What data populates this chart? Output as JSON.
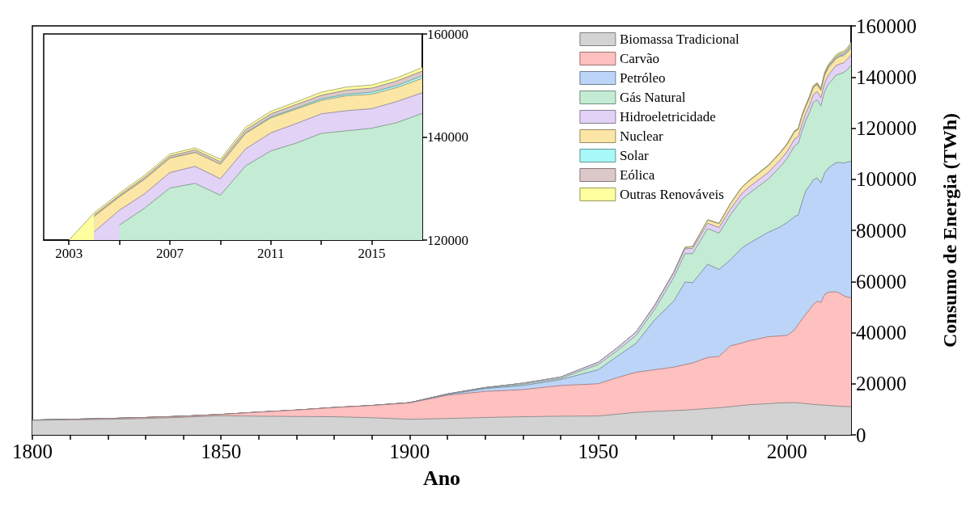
{
  "chart_data": [
    {
      "type": "area",
      "stacked": true,
      "xlabel": "Ano",
      "ylabel": "Consumo de Energia (TWh)",
      "legend": "top right",
      "marker": "none",
      "x": [
        1800,
        1810,
        1820,
        1830,
        1840,
        1850,
        1860,
        1870,
        1880,
        1890,
        1900,
        1910,
        1920,
        1930,
        1940,
        1950,
        1955,
        1960,
        1965,
        1970,
        1973,
        1975,
        1979,
        1982,
        1985,
        1988,
        1990,
        1995,
        1998,
        2000,
        2002,
        2003,
        2004,
        2005,
        2006,
        2007,
        2008,
        2009,
        2010,
        2011,
        2012,
        2013,
        2014,
        2015,
        2016,
        2017
      ],
      "xlim": [
        1800,
        2017
      ],
      "xticks": [
        1800,
        {
          "value": 1810,
          "label": null
        },
        {
          "value": 1820,
          "label": null
        },
        {
          "value": 1830,
          "label": null
        },
        {
          "value": 1840,
          "label": null
        },
        1850,
        {
          "value": 1860,
          "label": null
        },
        {
          "value": 1870,
          "label": null
        },
        {
          "value": 1880,
          "label": null
        },
        {
          "value": 1890,
          "label": null
        },
        1900,
        {
          "value": 1910,
          "label": null
        },
        {
          "value": 1920,
          "label": null
        },
        {
          "value": 1930,
          "label": null
        },
        {
          "value": 1940,
          "label": null
        },
        1950,
        {
          "value": 1960,
          "label": null
        },
        {
          "value": 1970,
          "label": null
        },
        {
          "value": 1980,
          "label": null
        },
        {
          "value": 1990,
          "label": null
        },
        2000,
        {
          "value": 2010,
          "label": null
        }
      ],
      "ylim": [
        0,
        160000
      ],
      "yticks": [
        0,
        20000,
        40000,
        60000,
        80000,
        100000,
        120000,
        140000,
        160000
      ],
      "series": [
        {
          "name": "Biomassa Tradicional",
          "color": "#d3d3d3",
          "values": [
            5700,
            5900,
            6100,
            6400,
            6900,
            7500,
            7300,
            7200,
            7100,
            6700,
            6100,
            6400,
            6800,
            7100,
            7300,
            7400,
            8100,
            8800,
            9200,
            9500,
            9700,
            9900,
            10300,
            10600,
            11000,
            11500,
            11800,
            12200,
            12500,
            12600,
            12600,
            12500,
            12400,
            12200,
            12100,
            11900,
            11800,
            11700,
            11600,
            11500,
            11400,
            11300,
            11200,
            11100,
            11100,
            11000
          ]
        },
        {
          "name": "Carvão",
          "color": "#ffc0c0",
          "values": [
            100,
            200,
            300,
            400,
            400,
            500,
            1600,
            2500,
            3600,
            4800,
            6400,
            9100,
            10200,
            10600,
            12000,
            12600,
            14300,
            15700,
            16300,
            17000,
            17800,
            18200,
            20000,
            20100,
            23800,
            24400,
            25000,
            26200,
            26200,
            26300,
            28400,
            30700,
            32900,
            35000,
            36900,
            39100,
            40500,
            40100,
            43300,
            44300,
            44500,
            44700,
            44200,
            43400,
            42800,
            42700
          ]
        },
        {
          "name": "Petróleo",
          "color": "#bcd4f8",
          "values": [
            0,
            0,
            0,
            0,
            0,
            0,
            0,
            0,
            0,
            0,
            100,
            300,
            1100,
            1600,
            2300,
            5500,
            8300,
            11300,
            19600,
            25800,
            32300,
            31400,
            36500,
            34000,
            33700,
            37100,
            38200,
            40800,
            42500,
            44100,
            44400,
            42800,
            45700,
            48300,
            48500,
            48800,
            48200,
            46800,
            47600,
            48600,
            49600,
            50500,
            51200,
            51800,
            52800,
            53300
          ]
        },
        {
          "name": "Gás Natural",
          "color": "#c4ecd4",
          "values": [
            0,
            0,
            0,
            0,
            0,
            0,
            0,
            0,
            0,
            0,
            0,
            100,
            200,
            500,
            500,
            2000,
            2200,
            3100,
            4100,
            9300,
            11100,
            11400,
            13900,
            14200,
            17500,
            19000,
            19500,
            20800,
            23300,
            25000,
            27600,
            28000,
            27800,
            27400,
            28700,
            30300,
            30500,
            30100,
            31900,
            32900,
            33300,
            34200,
            34600,
            35400,
            36100,
            37600
          ]
        },
        {
          "name": "Hidroeletricidade",
          "color": "#e2d2f6",
          "values": [
            0,
            0,
            0,
            0,
            0,
            0,
            0,
            0,
            0,
            0,
            0,
            100,
            200,
            400,
            500,
            900,
            1100,
            1300,
            1500,
            1800,
            1900,
            2000,
            2100,
            2200,
            2300,
            2400,
            2500,
            2600,
            2700,
            2700,
            2700,
            2700,
            2800,
            2900,
            2800,
            3000,
            3300,
            3200,
            3300,
            3500,
            3800,
            3800,
            3900,
            3800,
            4100,
            4000
          ]
        },
        {
          "name": "Nuclear",
          "color": "#fbe6a6",
          "values": [
            0,
            0,
            0,
            0,
            0,
            0,
            0,
            0,
            0,
            0,
            0,
            0,
            0,
            0,
            0,
            0,
            0,
            0,
            100,
            200,
            500,
            700,
            1200,
            1500,
            2000,
            2300,
            2400,
            2600,
            2700,
            2800,
            2800,
            2800,
            3000,
            2600,
            2800,
            2800,
            2700,
            2800,
            3000,
            2900,
            2800,
            2600,
            2900,
            2800,
            2700,
            2800
          ]
        },
        {
          "name": "Solar",
          "color": "#a8f8f8",
          "values": [
            0,
            0,
            0,
            0,
            0,
            0,
            0,
            0,
            0,
            0,
            0,
            0,
            0,
            0,
            0,
            0,
            0,
            0,
            0,
            0,
            0,
            0,
            0,
            0,
            0,
            0,
            0,
            0,
            0,
            0,
            0,
            0,
            0,
            0,
            0,
            0,
            0,
            0,
            100,
            200,
            200,
            300,
            300,
            400,
            400,
            500
          ]
        },
        {
          "name": "Eólica",
          "color": "#dcc8c8",
          "values": [
            0,
            0,
            0,
            0,
            0,
            0,
            0,
            0,
            0,
            0,
            0,
            0,
            0,
            0,
            0,
            0,
            0,
            0,
            0,
            0,
            0,
            0,
            0,
            0,
            0,
            0,
            0,
            0,
            0,
            100,
            200,
            200,
            300,
            300,
            400,
            400,
            500,
            500,
            600,
            600,
            700,
            700,
            800,
            800,
            900,
            900
          ]
        },
        {
          "name": "Outras Renováveis",
          "color": "#ffffa0",
          "values": [
            0,
            0,
            0,
            0,
            0,
            0,
            0,
            0,
            0,
            0,
            0,
            0,
            0,
            0,
            0,
            0,
            0,
            0,
            100,
            100,
            100,
            100,
            200,
            200,
            200,
            200,
            200,
            300,
            300,
            300,
            300,
            300,
            400,
            400,
            400,
            400,
            400,
            500,
            500,
            500,
            500,
            600,
            600,
            600,
            600,
            700
          ]
        }
      ]
    },
    {
      "type": "area",
      "marker": "none",
      "x": [
        2003,
        2004,
        2005,
        2006,
        2007,
        2008,
        2009,
        2010,
        2011,
        2012,
        2013,
        2014,
        2015,
        2016,
        2017
      ],
      "xlim": [
        2002,
        2017
      ],
      "xticks": [
        2003,
        {
          "value": 2005,
          "label": null
        },
        2007,
        {
          "value": 2009,
          "label": null
        },
        2011,
        {
          "value": 2013,
          "label": null
        },
        2015
      ],
      "ylim": [
        120000,
        160000
      ],
      "yticks": [
        120000,
        140000,
        160000
      ],
      "series": [
        {
          "color": "#c4ecd4",
          "values": [
            null,
            null,
            122900,
            126200,
            130100,
            131000,
            128700,
            134400,
            137300,
            138800,
            140700,
            141200,
            141700,
            142800,
            144600
          ]
        },
        {
          "color": "#e2d2f6",
          "values": [
            null,
            121600,
            125800,
            129000,
            133100,
            134300,
            131900,
            137700,
            140800,
            142600,
            144500,
            145100,
            145500,
            146900,
            148600
          ]
        },
        {
          "color": "#fbe6a6",
          "values": [
            null,
            124600,
            128400,
            131800,
            135900,
            137000,
            134700,
            140700,
            143700,
            145400,
            147100,
            148000,
            148300,
            149600,
            151400
          ]
        },
        {
          "color": "#a8f8f8",
          "values": [
            null,
            124600,
            128400,
            131800,
            135900,
            137000,
            134700,
            140800,
            143900,
            145600,
            147400,
            148300,
            148700,
            150000,
            151900
          ]
        },
        {
          "color": "#dcc8c8",
          "values": [
            null,
            124900,
            128700,
            132200,
            136300,
            137500,
            135200,
            141400,
            144500,
            146300,
            148100,
            149100,
            149500,
            150900,
            152800
          ]
        },
        {
          "color": "#ffffa0",
          "values": [
            120000,
            125300,
            129100,
            132600,
            136700,
            137900,
            135700,
            141900,
            145000,
            146800,
            148700,
            149700,
            150100,
            151500,
            153500
          ]
        }
      ]
    }
  ]
}
